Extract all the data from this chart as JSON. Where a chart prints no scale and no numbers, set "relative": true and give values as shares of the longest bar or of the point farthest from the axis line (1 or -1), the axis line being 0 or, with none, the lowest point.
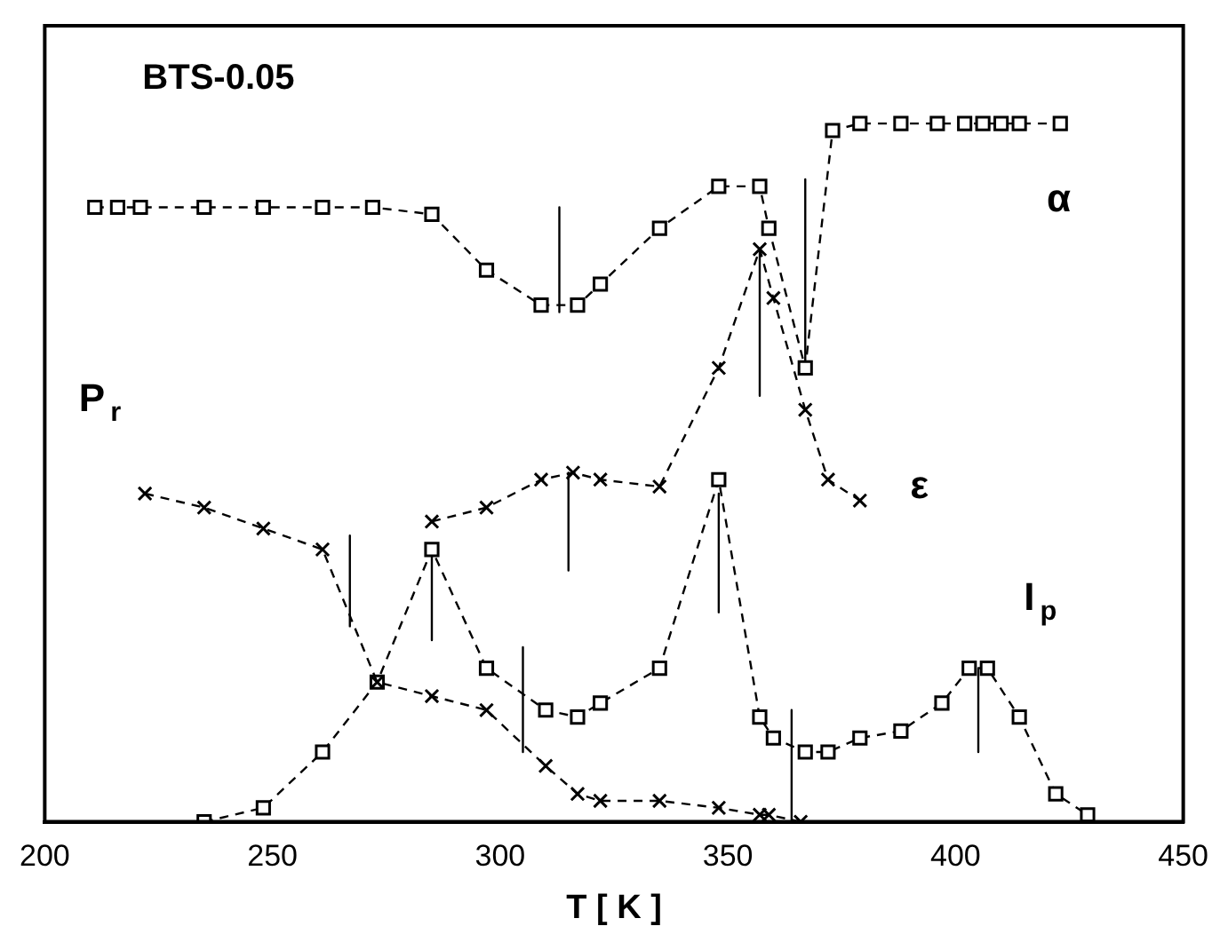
{
  "chart_data": {
    "type": "line",
    "title": "BTS-0.05",
    "xlabel": "T [ K ]",
    "relative": true,
    "xlim": [
      200,
      450
    ],
    "xticks": [
      200,
      250,
      300,
      350,
      400,
      450
    ],
    "grid": false,
    "legend": false,
    "tick_labels": "x",
    "series": [
      {
        "name": "α",
        "color": "#000000",
        "marker": "square",
        "line_style": "dashed",
        "x": [
          211,
          216,
          221,
          235,
          248,
          261,
          272,
          285,
          297,
          309,
          317,
          322,
          335,
          348,
          357,
          359,
          367,
          373,
          379,
          388,
          396,
          402,
          406,
          410,
          414,
          423
        ],
        "values": [
          0.88,
          0.88,
          0.88,
          0.88,
          0.88,
          0.88,
          0.88,
          0.87,
          0.79,
          0.74,
          0.74,
          0.77,
          0.85,
          0.91,
          0.91,
          0.85,
          0.65,
          0.99,
          1,
          1,
          1,
          1,
          1,
          1,
          1,
          1
        ]
      },
      {
        "name": "ε",
        "color": "#000000",
        "marker": "cross",
        "line_style": "dashed",
        "x": [
          285,
          297,
          309,
          316,
          322,
          335,
          348,
          357,
          360,
          367,
          372,
          379
        ],
        "values": [
          0.43,
          0.45,
          0.49,
          0.5,
          0.49,
          0.48,
          0.65,
          0.82,
          0.75,
          0.59,
          0.49,
          0.46
        ]
      },
      {
        "name": "P$_{r}$",
        "color": "#000000",
        "marker": "cross",
        "line_style": "dashed",
        "x": [
          222,
          235,
          248,
          261,
          273,
          285,
          297,
          310,
          317,
          322,
          335,
          348,
          357,
          359,
          366
        ],
        "values": [
          0.47,
          0.45,
          0.42,
          0.39,
          0.2,
          0.18,
          0.16,
          0.08,
          0.04,
          0.03,
          0.03,
          0.02,
          0.01,
          0.01,
          0
        ]
      },
      {
        "name": "I$_{p}$",
        "color": "#000000",
        "marker": "square",
        "line_style": "dashed",
        "x": [
          235,
          248,
          261,
          273,
          285,
          297,
          310,
          317,
          322,
          335,
          348,
          357,
          360,
          367,
          372,
          379,
          388,
          397,
          403,
          407,
          414,
          422,
          429
        ],
        "values": [
          0,
          0.02,
          0.1,
          0.2,
          0.39,
          0.22,
          0.16,
          0.15,
          0.17,
          0.22,
          0.49,
          0.15,
          0.12,
          0.1,
          0.1,
          0.12,
          0.13,
          0.17,
          0.22,
          0.22,
          0.15,
          0.04,
          0.01
        ]
      },
      {
        "color": "#000000",
        "marker": "none",
        "line_style": "solid",
        "x": [
          313,
          313
        ],
        "values": [
          0.88,
          0.73
        ]
      },
      {
        "color": "#000000",
        "marker": "none",
        "line_style": "solid",
        "x": [
          367,
          367
        ],
        "values": [
          0.92,
          0.65
        ]
      },
      {
        "color": "#000000",
        "marker": "none",
        "line_style": "solid",
        "x": [
          357,
          357
        ],
        "values": [
          0.82,
          0.61
        ]
      },
      {
        "color": "#000000",
        "marker": "none",
        "line_style": "solid",
        "x": [
          315,
          315
        ],
        "values": [
          0.5,
          0.36
        ]
      },
      {
        "color": "#000000",
        "marker": "none",
        "line_style": "solid",
        "x": [
          267,
          267
        ],
        "values": [
          0.41,
          0.28
        ]
      },
      {
        "color": "#000000",
        "marker": "none",
        "line_style": "solid",
        "x": [
          285,
          285
        ],
        "values": [
          0.38,
          0.26
        ]
      },
      {
        "color": "#000000",
        "marker": "none",
        "line_style": "solid",
        "x": [
          305,
          305
        ],
        "values": [
          0.25,
          0.1
        ]
      },
      {
        "color": "#000000",
        "marker": "none",
        "line_style": "solid",
        "x": [
          348,
          348
        ],
        "values": [
          0.47,
          0.3
        ]
      },
      {
        "color": "#000000",
        "marker": "none",
        "line_style": "solid",
        "x": [
          364,
          364
        ],
        "values": [
          0.16,
          0
        ]
      },
      {
        "color": "#000000",
        "marker": "none",
        "line_style": "solid",
        "x": [
          405,
          405
        ],
        "values": [
          0.22,
          0.1
        ]
      }
    ]
  }
}
